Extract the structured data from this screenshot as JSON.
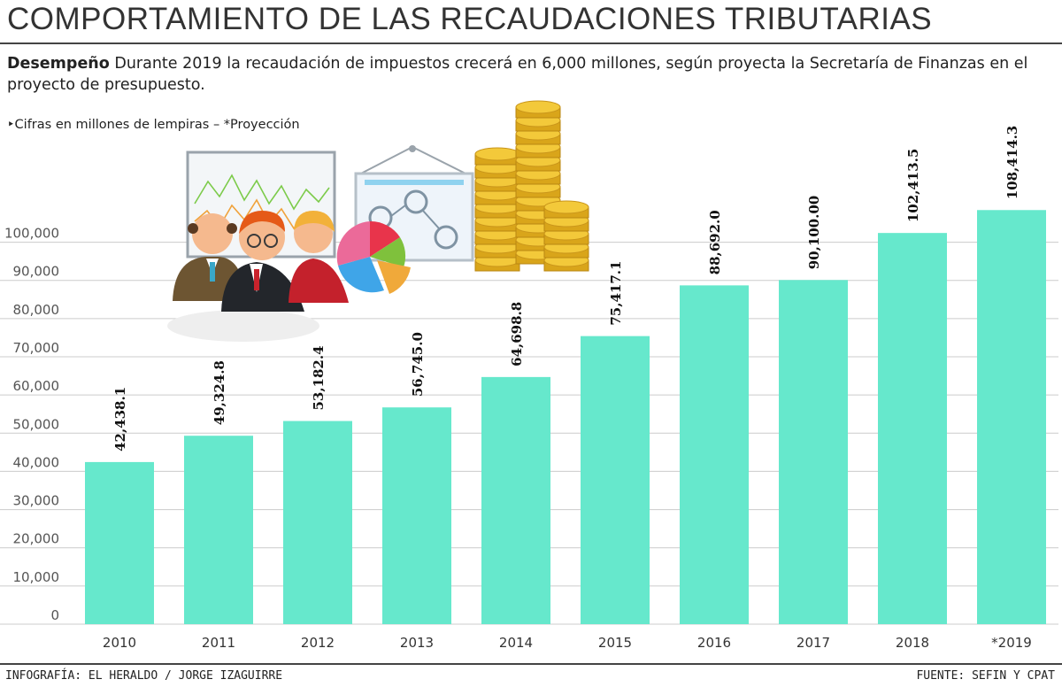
{
  "header": {
    "title": "COMPORTAMIENTO DE LAS RECAUDACIONES TRIBUTARIAS",
    "desc_lead": "Desempeño",
    "desc_text": " Durante 2019 la recaudación de impuestos crecerá en 6,000 millones, según proyecta la Secretaría de Finanzas en el proyecto de presupuesto.",
    "note": "‣Cifras en millones de lempiras – *Proyección"
  },
  "footer": {
    "credit": "INFOGRAFÍA: EL HERALDO / JORGE IZAGUIRRE",
    "source": "FUENTE: SEFIN Y CPAT"
  },
  "colors": {
    "bar": "#66e8cc",
    "grid": "#cccccc"
  },
  "illustration": {
    "icons": [
      "line-chart-board-icon",
      "business-people-icon",
      "pie-chart-icon",
      "flowchart-board-icon",
      "gold-coins-icon"
    ]
  },
  "chart_data": {
    "type": "bar",
    "title": "COMPORTAMIENTO DE LAS RECAUDACIONES TRIBUTARIAS",
    "xlabel": "",
    "ylabel": "",
    "categories": [
      "2010",
      "2011",
      "2012",
      "2013",
      "2014",
      "2015",
      "2016",
      "2017",
      "2018",
      "*2019"
    ],
    "values": [
      42438.1,
      49324.8,
      53182.4,
      56745.0,
      64698.8,
      75417.1,
      88692.0,
      90100.0,
      102413.5,
      108414.3
    ],
    "value_labels": [
      "42,438.1",
      "49,324.8",
      "53,182.4",
      "56,745.0",
      "64,698.8",
      "75,417.1",
      "88,692.0",
      "90,100.00",
      "102,413.5",
      "108,414.3"
    ],
    "yticks": [
      0,
      10000,
      20000,
      30000,
      40000,
      50000,
      60000,
      70000,
      80000,
      90000,
      100000
    ],
    "ytick_labels": [
      "0",
      "10,000",
      "20,000",
      "30,000",
      "40,000",
      "50,000",
      "60,000",
      "70,000",
      "80,000",
      "90,000",
      "100,000"
    ],
    "ylim": [
      0,
      105000
    ],
    "grid": true,
    "legend": "none"
  }
}
